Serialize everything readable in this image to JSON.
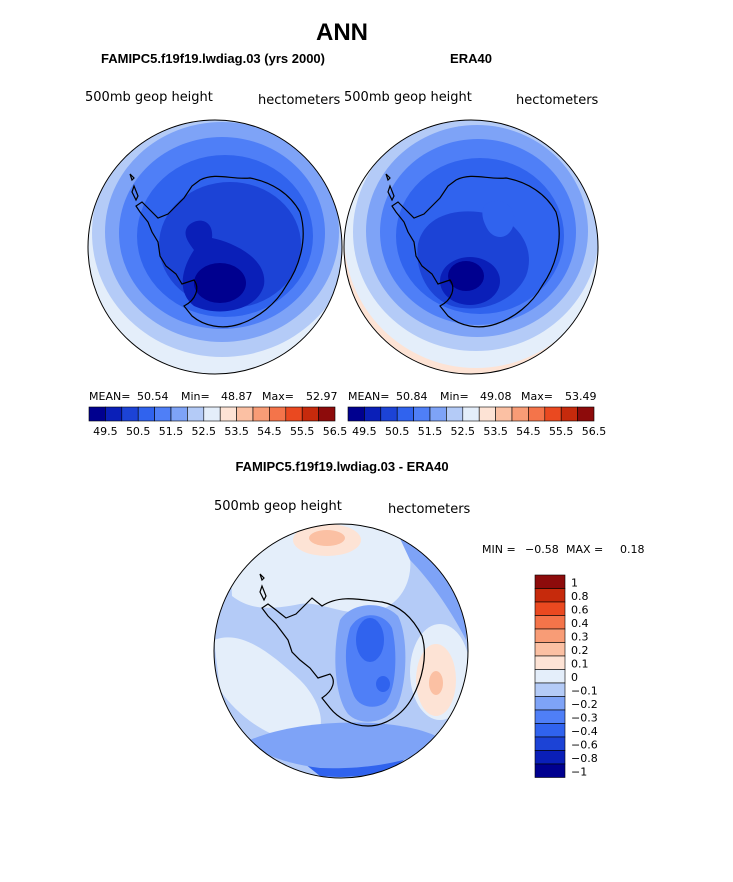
{
  "chart_data": {
    "type": "heatmap",
    "title": "ANN",
    "colorbar_colors": [
      "#00008f",
      "#0a1fb8",
      "#1c43d6",
      "#3063ee",
      "#4f7ff7",
      "#7ea3f7",
      "#b4cbf7",
      "#e4eefa",
      "#fde3d5",
      "#fbc0a3",
      "#f89c76",
      "#f4744a",
      "#ea4920",
      "#c62a0c",
      "#8d0b0b"
    ],
    "panels": [
      {
        "title": "FAMIPC5.f19f19.lwdiag.03 (yrs 2000)",
        "field": "500mb geop height",
        "units": "hectometers",
        "stats_labels": [
          "MEAN=",
          "Min=",
          "Max="
        ],
        "stats_values": [
          "50.54",
          "48.87",
          "52.97"
        ],
        "colorbar_ticks": [
          "49.5",
          "50.5",
          "51.5",
          "52.5",
          "53.5",
          "54.5",
          "55.5",
          "56.5"
        ]
      },
      {
        "title": "ERA40",
        "field": "500mb geop height",
        "units": "hectometers",
        "stats_labels": [
          "MEAN=",
          "Min=",
          "Max="
        ],
        "stats_values": [
          "50.84",
          "49.08",
          "53.49"
        ],
        "colorbar_ticks": [
          "49.5",
          "50.5",
          "51.5",
          "52.5",
          "53.5",
          "54.5",
          "55.5",
          "56.5"
        ]
      },
      {
        "title": "FAMIPC5.f19f19.lwdiag.03 - ERA40",
        "field": "500mb geop height",
        "units": "hectometers",
        "min_label": "MIN =",
        "min_value": "−0.58",
        "max_label": "MAX =",
        "max_value": "0.18",
        "colorbar_levels": [
          "1",
          "0.8",
          "0.6",
          "0.4",
          "0.3",
          "0.2",
          "0.1",
          "0",
          "−0.1",
          "−0.2",
          "−0.3",
          "−0.4",
          "−0.6",
          "−0.8",
          "−1"
        ],
        "colorbar_colors": [
          "#8d0b0b",
          "#c62a0c",
          "#ea4920",
          "#f4744a",
          "#f89c76",
          "#fbc0a3",
          "#fde3d5",
          "#e4eefa",
          "#b4cbf7",
          "#7ea3f7",
          "#4f7ff7",
          "#3063ee",
          "#1c43d6",
          "#0a1fb8",
          "#00008f"
        ]
      }
    ]
  }
}
